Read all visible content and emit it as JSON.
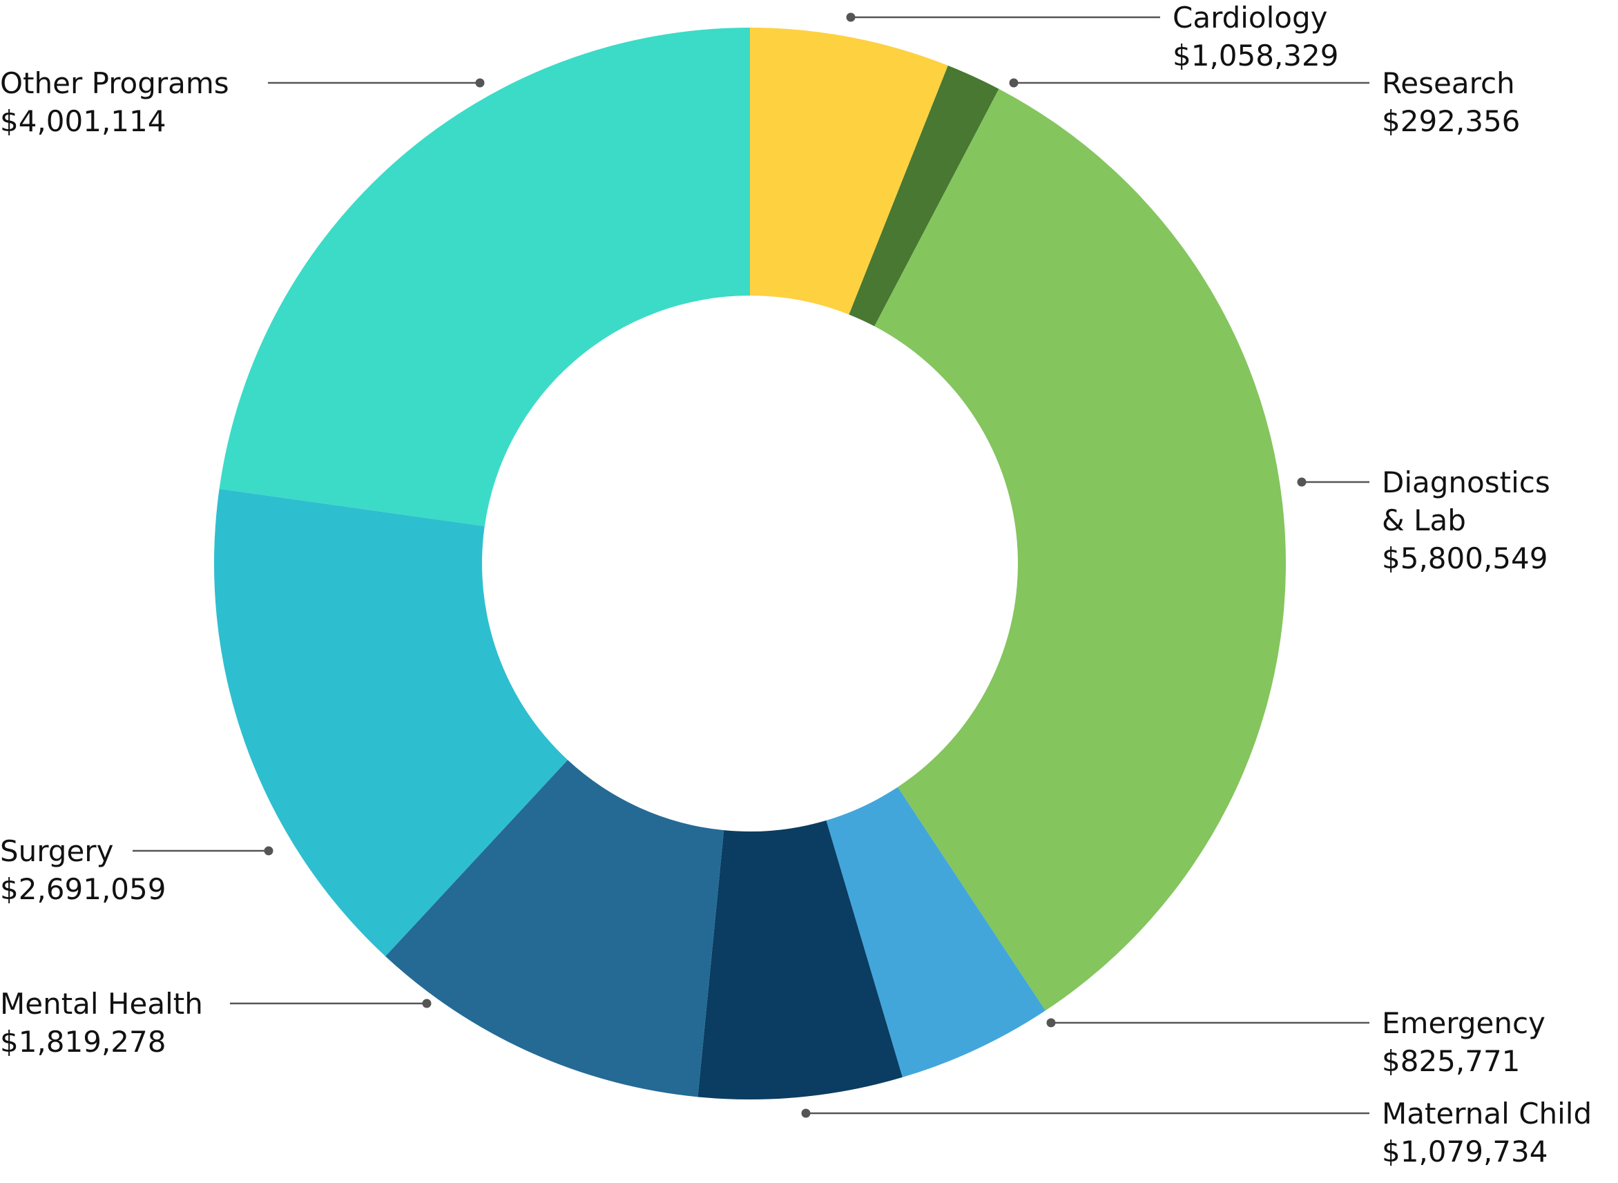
{
  "chart_data": {
    "type": "pie",
    "variant": "donut",
    "title": "",
    "slices": [
      {
        "label": "Cardiology",
        "value_text": "$1,058,329",
        "value": 1058329,
        "color": "#FED141"
      },
      {
        "label": "Research",
        "value_text": "$292,356",
        "value": 292356,
        "color": "#487831"
      },
      {
        "label": "Diagnostics & Lab",
        "label_lines": [
          "Diagnostics",
          "& Lab"
        ],
        "value_text": "$5,800,549",
        "value": 5800549,
        "color": "#84C55E"
      },
      {
        "label": "Emergency",
        "value_text": "$825,771",
        "value": 825771,
        "color": "#42A6DB"
      },
      {
        "label": "Maternal Child",
        "value_text": "$1,079,734",
        "value": 1079734,
        "color": "#0A3D61"
      },
      {
        "label": "Mental Health",
        "value_text": "$1,819,278",
        "value": 1819278,
        "color": "#246A95"
      },
      {
        "label": "Surgery",
        "value_text": "$2,691,059",
        "value": 2691059,
        "color": "#2DBFCF"
      },
      {
        "label": "Other Programs",
        "value_text": "$4,001,114",
        "value": 4001114,
        "color": "#3BDBC7"
      }
    ],
    "start_angle": "12 o'clock",
    "direction": "clockwise",
    "legend": "none (callout labels)"
  }
}
